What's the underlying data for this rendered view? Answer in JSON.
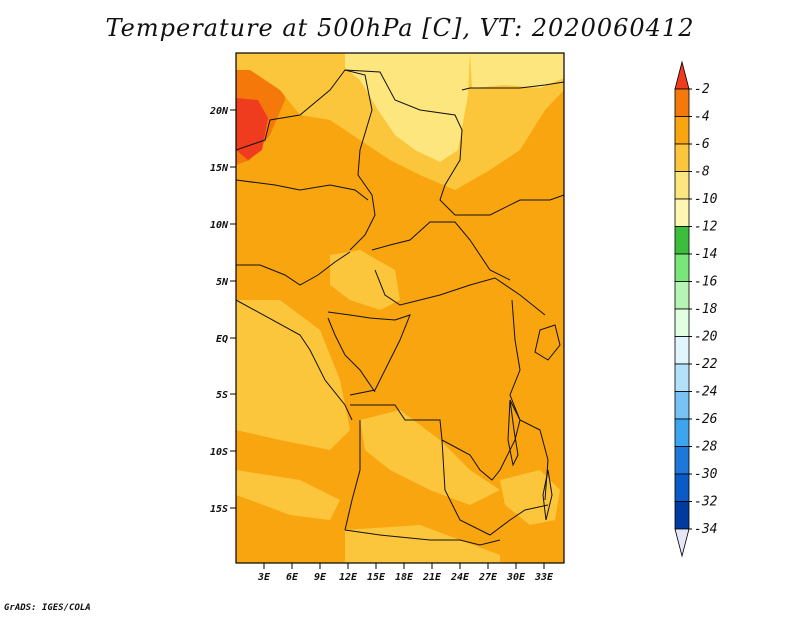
{
  "title": "Temperature at 500hPa [C], VT: 2020060412",
  "credit": "GrADS: IGES/COLA",
  "lat_labels": [
    "20N",
    "15N",
    "10N",
    "5N",
    "EQ",
    "5S",
    "10S",
    "15S"
  ],
  "lon_labels": [
    "3E",
    "6E",
    "9E",
    "12E",
    "15E",
    "18E",
    "21E",
    "24E",
    "27E",
    "30E",
    "33E"
  ],
  "colorbar": {
    "levels": [
      "-2",
      "-4",
      "-6",
      "-8",
      "-10",
      "-12",
      "-14",
      "-16",
      "-18",
      "-20",
      "-22",
      "-24",
      "-26",
      "-28",
      "-30",
      "-32",
      "-34"
    ],
    "colors": [
      "#f03c1e",
      "#f5780a",
      "#f9a50f",
      "#fcc63c",
      "#fde67d",
      "#fff6b4",
      "#3cbe3c",
      "#78e678",
      "#b4f5b4",
      "#e1ffe1",
      "#e1f5ff",
      "#b4e1fa",
      "#78c3f5",
      "#3ca5f0",
      "#1e78dc",
      "#0a5ac8",
      "#003ca0",
      "#0a0a6e",
      "#e6e6f5"
    ]
  },
  "field_colors": {
    "dominant": "#f9a50f",
    "warm": "#f5780a",
    "cool": "#fcc63c",
    "coolest": "#fde67d"
  }
}
